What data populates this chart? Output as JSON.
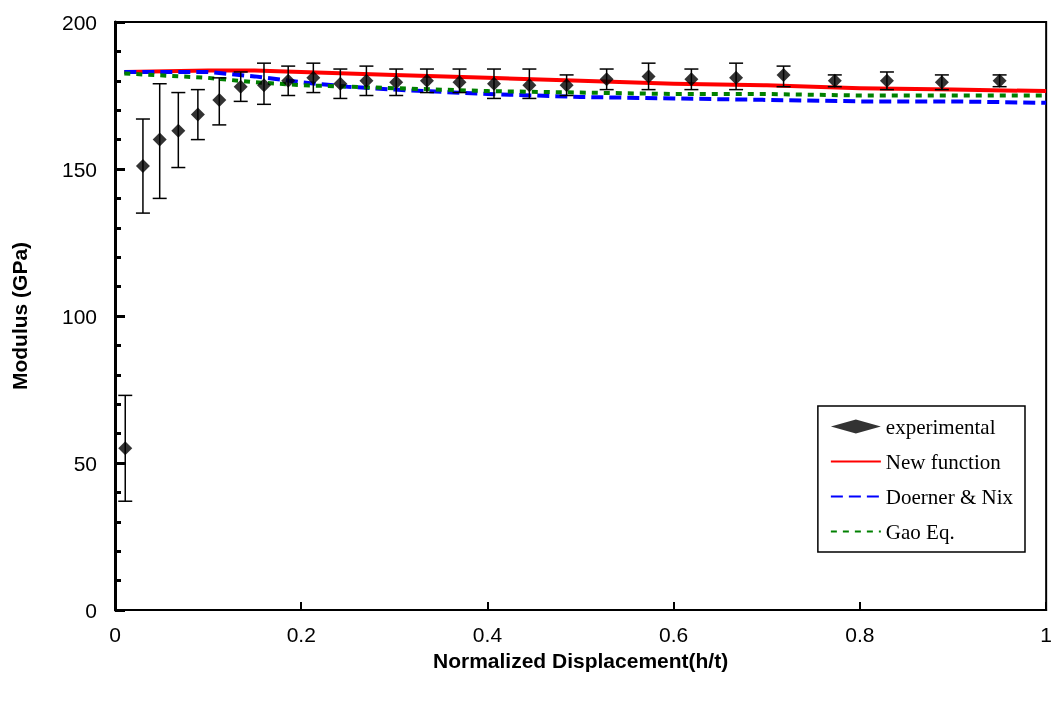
{
  "chart_data": {
    "type": "scatter",
    "xlabel": "Normalized Displacement(h/t)",
    "ylabel": "Modulus (GPa)",
    "xlim": [
      0,
      1
    ],
    "xticks": [
      0,
      0.2,
      0.4,
      0.6,
      0.8,
      1
    ],
    "ylim": [
      0,
      200
    ],
    "yticks": [
      0,
      50,
      100,
      150,
      200
    ],
    "grid": false,
    "legend": "bottom right",
    "series": [
      {
        "name": "experimental",
        "marker": "diamond",
        "color": "#000000",
        "x": [
          0.011,
          0.03,
          0.048,
          0.068,
          0.089,
          0.112,
          0.135,
          0.16,
          0.186,
          0.213,
          0.242,
          0.27,
          0.302,
          0.335,
          0.37,
          0.407,
          0.445,
          0.485,
          0.528,
          0.573,
          0.619,
          0.667,
          0.718,
          0.773,
          0.829,
          0.888,
          0.95
        ],
        "values": [
          55,
          151,
          160,
          163,
          168.5,
          173.5,
          178,
          178.5,
          180,
          181,
          179,
          180,
          179.5,
          180,
          179.5,
          179,
          178.5,
          178.5,
          180.5,
          181.5,
          180.5,
          181,
          182,
          180,
          180,
          179.5,
          180
        ],
        "errors": [
          [
            37,
            73
          ],
          [
            135,
            167
          ],
          [
            140,
            179
          ],
          [
            150.5,
            176
          ],
          [
            160,
            177
          ],
          [
            165,
            181
          ],
          [
            173,
            183
          ],
          [
            172,
            186
          ],
          [
            175,
            185
          ],
          [
            176,
            186
          ],
          [
            174,
            184
          ],
          [
            175,
            185
          ],
          [
            175,
            184
          ],
          [
            176,
            184
          ],
          [
            176,
            184
          ],
          [
            174,
            184
          ],
          [
            174,
            184
          ],
          [
            175,
            182
          ],
          [
            177,
            184
          ],
          [
            177,
            186
          ],
          [
            177,
            184
          ],
          [
            177,
            186
          ],
          [
            178,
            185
          ],
          [
            178,
            182
          ],
          [
            177,
            183
          ],
          [
            177,
            182
          ],
          [
            178,
            182
          ]
        ]
      },
      {
        "name": "New function",
        "type": "line",
        "marker": "none",
        "line_style": "solid",
        "color": "#ff0000",
        "x": [
          0.01,
          0.1,
          0.15,
          0.2,
          0.3,
          0.4,
          0.5,
          0.6,
          0.7,
          0.8,
          0.9,
          1.0
        ],
        "values": [
          183,
          183.5,
          183.5,
          183,
          182,
          181,
          180,
          179,
          178.5,
          177.5,
          177,
          176.5
        ]
      },
      {
        "name": "Doerner & Nix",
        "type": "line",
        "marker": "none",
        "line_style": "dashed",
        "color": "#0000ff",
        "x": [
          0.01,
          0.1,
          0.15,
          0.2,
          0.25,
          0.3,
          0.4,
          0.5,
          0.6,
          0.7,
          0.8,
          0.9,
          1.0
        ],
        "values": [
          183,
          183,
          181.5,
          179.5,
          178,
          177,
          175.5,
          174.5,
          174,
          173.5,
          173,
          173,
          172.5
        ]
      },
      {
        "name": "Gao Eq.",
        "type": "line",
        "marker": "none",
        "line_style": "dotted",
        "color": "#008000",
        "x": [
          0.01,
          0.1,
          0.15,
          0.2,
          0.3,
          0.4,
          0.5,
          0.6,
          0.7,
          0.8,
          0.9,
          1.0
        ],
        "values": [
          182.5,
          181,
          179.5,
          178.5,
          177.5,
          176.5,
          176,
          175.5,
          175.5,
          175,
          175,
          175
        ]
      }
    ]
  }
}
